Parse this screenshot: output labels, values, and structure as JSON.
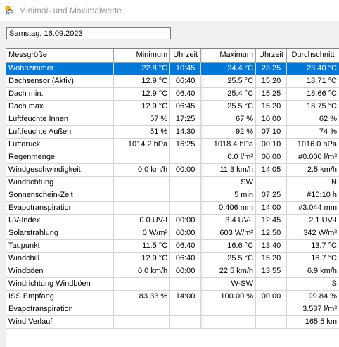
{
  "window": {
    "title": "Minimal- und Maximalwerte",
    "icon": "weather-app-icon"
  },
  "date_field": {
    "value": "Samstag, 16.09.2023"
  },
  "table": {
    "headers": {
      "name": "Messgröße",
      "min": "Minimum",
      "min_time": "Uhrzeit",
      "max": "Maximum",
      "max_time": "Uhrzeit",
      "avg": "Durchschnitt"
    },
    "selected_row_color": "#0078d7",
    "rows": [
      {
        "name": "Wohnzimmer",
        "min": "22.8 °C",
        "min_time": "10:45",
        "max": "24.4 °C",
        "max_time": "23:25",
        "avg": "23.40 °C"
      },
      {
        "name": "Dachsensor (Aktiv)",
        "min": "12.9 °C",
        "min_time": "06:40",
        "max": "25.5 °C",
        "max_time": "15:20",
        "avg": "18.71 °C"
      },
      {
        "name": "Dach min.",
        "min": "12.9 °C",
        "min_time": "06:40",
        "max": "25.4 °C",
        "max_time": "15:25",
        "avg": "18.66 °C"
      },
      {
        "name": "Dach max.",
        "min": "12.9 °C",
        "min_time": "06:45",
        "max": "25.5 °C",
        "max_time": "15:20",
        "avg": "18.75 °C"
      },
      {
        "name": "Luftfeuchte Innen",
        "min": "57 %",
        "min_time": "17:25",
        "max": "67 %",
        "max_time": "10:00",
        "avg": "62 %"
      },
      {
        "name": "Luftfeuchte Außen",
        "min": "51 %",
        "min_time": "14:30",
        "max": "92 %",
        "max_time": "07:10",
        "avg": "74 %"
      },
      {
        "name": "Luftdruck",
        "min": "1014.2 hPa",
        "min_time": "16:25",
        "max": "1018.4 hPa",
        "max_time": "00:10",
        "avg": "1016.0 hPa"
      },
      {
        "name": "Regenmenge",
        "min": "",
        "min_time": "",
        "max": "0.0 l/m²",
        "max_time": "00:00",
        "avg": "#0.000 l/m²"
      },
      {
        "name": "Windgeschwindigkeit",
        "min": "0.0 km/h",
        "min_time": "00:00",
        "max": "11.3 km/h",
        "max_time": "14:05",
        "avg": "2.5 km/h"
      },
      {
        "name": "Windrichtung",
        "min": "",
        "min_time": "",
        "max": "SW",
        "max_time": "",
        "avg": "N"
      },
      {
        "name": "Sonnenschein-Zeit",
        "min": "",
        "min_time": "",
        "max": "5 min",
        "max_time": "07:25",
        "avg": "#10:10 h"
      },
      {
        "name": "Evapotranspiration",
        "min": "",
        "min_time": "",
        "max": "0.406 mm",
        "max_time": "14:00",
        "avg": "#3.044 mm"
      },
      {
        "name": "UV-Index",
        "min": "0.0 UV-I",
        "min_time": "00:00",
        "max": "3.4 UV-I",
        "max_time": "12:45",
        "avg": "2.1 UV-I"
      },
      {
        "name": "Solarstrahlung",
        "min": "0 W/m²",
        "min_time": "00:00",
        "max": "603 W/m²",
        "max_time": "12:50",
        "avg": "342 W/m²"
      },
      {
        "name": "Taupunkt",
        "min": "11.5 °C",
        "min_time": "06:40",
        "max": "16.6 °C",
        "max_time": "13:40",
        "avg": "13.7 °C"
      },
      {
        "name": "Windchill",
        "min": "12.9 °C",
        "min_time": "06:40",
        "max": "25.5 °C",
        "max_time": "15:20",
        "avg": "18.7 °C"
      },
      {
        "name": "Windböen",
        "min": "0.0 km/h",
        "min_time": "00:00",
        "max": "22.5 km/h",
        "max_time": "13:55",
        "avg": "6.9 km/h"
      },
      {
        "name": "Windrichtung Windböen",
        "min": "",
        "min_time": "",
        "max": "W-SW",
        "max_time": "",
        "avg": "S"
      },
      {
        "name": "ISS Empfang",
        "min": "83.33 %",
        "min_time": "14:00",
        "max": "100.00 %",
        "max_time": "00:00",
        "avg": "99.84 %"
      },
      {
        "name": "Evapotranspiration",
        "min": "",
        "min_time": "",
        "max": "",
        "max_time": "",
        "avg": "3.537 l/m²"
      },
      {
        "name": "Wind Verlauf",
        "min": "",
        "min_time": "",
        "max": "",
        "max_time": "",
        "avg": "165.5 km"
      }
    ]
  }
}
